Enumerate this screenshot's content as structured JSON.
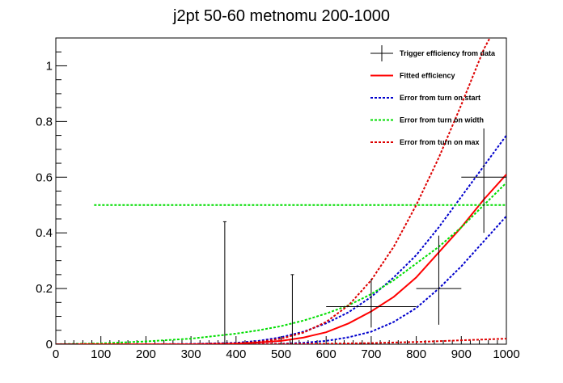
{
  "chart_data": {
    "type": "line",
    "title": "j2pt 50-60 metnomu 200-1000",
    "xlabel": "",
    "ylabel": "",
    "xlim": [
      0,
      1000
    ],
    "ylim": [
      0,
      1.1
    ],
    "x_ticks": [
      0,
      100,
      200,
      300,
      400,
      500,
      600,
      700,
      800,
      900,
      1000
    ],
    "x_tick_labels": [
      "0",
      "100",
      "200",
      "300",
      "400",
      "500",
      "600",
      "700",
      "800",
      "900",
      "1000"
    ],
    "y_ticks": [
      0,
      0.2,
      0.4,
      0.6,
      0.8,
      1
    ],
    "y_tick_labels": [
      "0",
      "0.2",
      "0.4",
      "0.6",
      "0.8",
      "1"
    ],
    "grid": false,
    "legend_position": "top-right",
    "legend": [
      {
        "label": "Trigger efficiency from data",
        "style": "errorbar",
        "color": "#000000"
      },
      {
        "label": "Fitted efficiency",
        "style": "solid",
        "color": "#ff0000"
      },
      {
        "label": "Error from turn on start",
        "style": "dotted",
        "color": "#0000cc"
      },
      {
        "label": "Error from turn on width",
        "style": "dotted",
        "color": "#00dd00"
      },
      {
        "label": "Error from turn on max",
        "style": "dotted",
        "color": "#dd0000"
      }
    ],
    "data_points": {
      "name": "Trigger efficiency from data",
      "points": [
        {
          "x": 25,
          "y": 0.0,
          "xerr": 25,
          "yerr_low": 0.0,
          "yerr_high": 0.0
        },
        {
          "x": 375,
          "y": 0.0,
          "xerr": 0,
          "yerr_low": 0.0,
          "yerr_high": 0.44
        },
        {
          "x": 525,
          "y": 0.0,
          "xerr": 0,
          "yerr_low": 0.0,
          "yerr_high": 0.25
        },
        {
          "x": 700,
          "y": 0.135,
          "xerr": 100,
          "yerr_low": 0.075,
          "yerr_high": 0.1
        },
        {
          "x": 850,
          "y": 0.2,
          "xerr": 50,
          "yerr_low": 0.13,
          "yerr_high": 0.19
        },
        {
          "x": 950,
          "y": 0.6,
          "xerr": 50,
          "yerr_low": 0.2,
          "yerr_high": 0.175
        }
      ]
    },
    "series": [
      {
        "name": "Fitted efficiency",
        "color": "#ff0000",
        "dash": "solid",
        "x": [
          0,
          100,
          200,
          300,
          400,
          450,
          500,
          550,
          600,
          650,
          700,
          750,
          800,
          850,
          900,
          950,
          1000
        ],
        "y": [
          0,
          0,
          0,
          0,
          0.002,
          0.006,
          0.012,
          0.024,
          0.043,
          0.075,
          0.118,
          0.17,
          0.24,
          0.33,
          0.42,
          0.52,
          0.61
        ]
      },
      {
        "name": "Error from turn on start",
        "color": "#0000cc",
        "dash": "dotted",
        "x": [
          0,
          100,
          200,
          300,
          400,
          450,
          500,
          550,
          600,
          650,
          700,
          750,
          800,
          850,
          900,
          950,
          1000
        ],
        "y": [
          0,
          0,
          0,
          0.001,
          0.005,
          0.012,
          0.025,
          0.045,
          0.075,
          0.115,
          0.17,
          0.24,
          0.32,
          0.42,
          0.53,
          0.64,
          0.75
        ]
      },
      {
        "name": "Error from turn on start",
        "color": "#0000cc",
        "dash": "dotted",
        "x": [
          0,
          100,
          200,
          300,
          400,
          450,
          500,
          550,
          600,
          650,
          700,
          750,
          800,
          850,
          900,
          950,
          1000
        ],
        "y": [
          0,
          0,
          0,
          0,
          0,
          0.001,
          0.002,
          0.005,
          0.012,
          0.025,
          0.045,
          0.08,
          0.13,
          0.2,
          0.28,
          0.37,
          0.46
        ]
      },
      {
        "name": "Error from turn on width",
        "color": "#00dd00",
        "dash": "dotted",
        "x": [
          0,
          100,
          200,
          300,
          400,
          450,
          500,
          550,
          600,
          650,
          700,
          750,
          800,
          850,
          900,
          950,
          1000
        ],
        "y": [
          0,
          0.003,
          0.01,
          0.02,
          0.038,
          0.05,
          0.065,
          0.085,
          0.11,
          0.14,
          0.18,
          0.23,
          0.29,
          0.35,
          0.42,
          0.5,
          0.58
        ]
      },
      {
        "name": "Error from turn on width",
        "color": "#00dd00",
        "dash": "dotted",
        "x": [
          85,
          1000
        ],
        "y": [
          0.5,
          0.5
        ]
      },
      {
        "name": "Error from turn on max",
        "color": "#dd0000",
        "dash": "dotted",
        "x": [
          0,
          100,
          200,
          300,
          400,
          450,
          500,
          550,
          600,
          650,
          700,
          750,
          800,
          850,
          900,
          950,
          970
        ],
        "y": [
          0,
          0,
          0,
          0,
          0.003,
          0.008,
          0.02,
          0.042,
          0.08,
          0.14,
          0.23,
          0.35,
          0.5,
          0.67,
          0.86,
          1.06,
          1.12
        ]
      },
      {
        "name": "Error from turn on max",
        "color": "#dd0000",
        "dash": "dotted",
        "x": [
          0,
          100,
          200,
          300,
          400,
          500,
          600,
          700,
          800,
          900,
          1000
        ],
        "y": [
          0,
          0,
          0,
          0,
          0,
          0.001,
          0.002,
          0.004,
          0.008,
          0.014,
          0.02
        ]
      }
    ]
  }
}
